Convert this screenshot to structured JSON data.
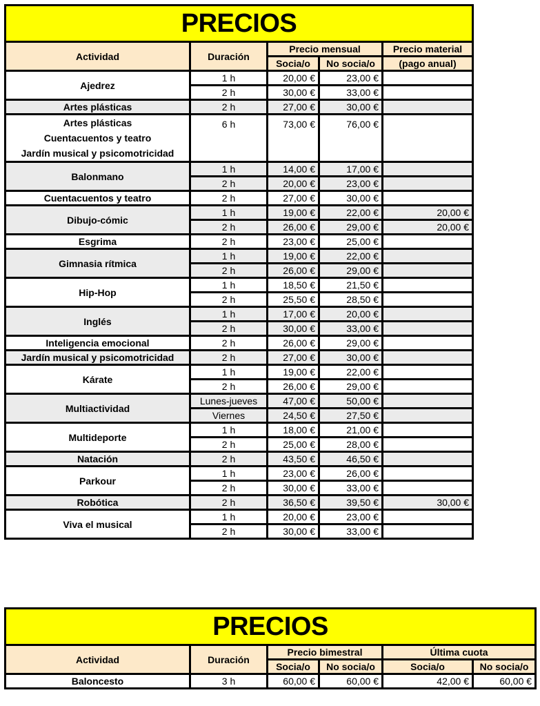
{
  "table1": {
    "title": "PRECIOS",
    "headers": {
      "actividad": "Actividad",
      "duracion": "Duración",
      "precio_mensual": "Precio mensual",
      "precio_material": "Precio material",
      "socia": "Socia/o",
      "no_socia": "No socia/o",
      "pago_anual": "(pago anual)"
    },
    "groups": [
      {
        "actividad": [
          "Ajedrez"
        ],
        "gray": false,
        "rows": [
          [
            "1 h",
            "20,00 €",
            "23,00 €",
            ""
          ],
          [
            "2 h",
            "30,00 €",
            "33,00 €",
            ""
          ]
        ]
      },
      {
        "actividad": [
          "Artes plásticas"
        ],
        "gray": true,
        "rows": [
          [
            "2 h",
            "27,00 €",
            "30,00 €",
            ""
          ]
        ]
      },
      {
        "actividad": [
          "Artes plásticas",
          "Cuentacuentos y teatro",
          "Jardín musical y psicomotricidad"
        ],
        "gray": false,
        "tall": true,
        "rows": [
          [
            "6 h",
            "73,00 €",
            "76,00 €",
            ""
          ]
        ]
      },
      {
        "actividad": [
          "Balonmano"
        ],
        "gray": true,
        "rows": [
          [
            "1 h",
            "14,00 €",
            "17,00 €",
            ""
          ],
          [
            "2 h",
            "20,00 €",
            "23,00 €",
            ""
          ]
        ]
      },
      {
        "actividad": [
          "Cuentacuentos y teatro"
        ],
        "gray": false,
        "rows": [
          [
            "2 h",
            "27,00 €",
            "30,00 €",
            ""
          ]
        ]
      },
      {
        "actividad": [
          "Dibujo-cómic"
        ],
        "gray": true,
        "rows": [
          [
            "1 h",
            "19,00 €",
            "22,00 €",
            "20,00 €"
          ],
          [
            "2 h",
            "26,00 €",
            "29,00 €",
            "20,00 €"
          ]
        ]
      },
      {
        "actividad": [
          "Esgrima"
        ],
        "gray": false,
        "rows": [
          [
            "2 h",
            "23,00 €",
            "25,00 €",
            ""
          ]
        ]
      },
      {
        "actividad": [
          "Gimnasia rítmica"
        ],
        "gray": true,
        "rows": [
          [
            "1 h",
            "19,00 €",
            "22,00 €",
            ""
          ],
          [
            "2 h",
            "26,00 €",
            "29,00 €",
            ""
          ]
        ]
      },
      {
        "actividad": [
          "Hip-Hop"
        ],
        "gray": false,
        "rows": [
          [
            "1 h",
            "18,50 €",
            "21,50 €",
            ""
          ],
          [
            "2 h",
            "25,50 €",
            "28,50 €",
            ""
          ]
        ]
      },
      {
        "actividad": [
          "Inglés"
        ],
        "gray": true,
        "rows": [
          [
            "1 h",
            "17,00 €",
            "20,00 €",
            ""
          ],
          [
            "2 h",
            "30,00 €",
            "33,00 €",
            ""
          ]
        ]
      },
      {
        "actividad": [
          "Inteligencia emocional"
        ],
        "gray": false,
        "rows": [
          [
            "2 h",
            "26,00 €",
            "29,00 €",
            ""
          ]
        ]
      },
      {
        "actividad": [
          "Jardín musical y psicomotricidad"
        ],
        "gray": true,
        "rows": [
          [
            "2 h",
            "27,00 €",
            "30,00 €",
            ""
          ]
        ]
      },
      {
        "actividad": [
          "Kárate"
        ],
        "gray": false,
        "rows": [
          [
            "1 h",
            "19,00 €",
            "22,00 €",
            ""
          ],
          [
            "2 h",
            "26,00 €",
            "29,00 €",
            ""
          ]
        ]
      },
      {
        "actividad": [
          "Multiactividad"
        ],
        "gray": true,
        "rows": [
          [
            "Lunes-jueves",
            "47,00 €",
            "50,00 €",
            ""
          ],
          [
            "Viernes",
            "24,50 €",
            "27,50 €",
            ""
          ]
        ]
      },
      {
        "actividad": [
          "Multideporte"
        ],
        "gray": false,
        "rows": [
          [
            "1 h",
            "18,00 €",
            "21,00 €",
            ""
          ],
          [
            "2 h",
            "25,00 €",
            "28,00 €",
            ""
          ]
        ]
      },
      {
        "actividad": [
          "Natación"
        ],
        "gray": true,
        "rows": [
          [
            "2 h",
            "43,50 €",
            "46,50 €",
            ""
          ]
        ]
      },
      {
        "actividad": [
          "Parkour"
        ],
        "gray": false,
        "rows": [
          [
            "1 h",
            "23,00 €",
            "26,00 €",
            ""
          ],
          [
            "2 h",
            "30,00 €",
            "33,00 €",
            ""
          ]
        ]
      },
      {
        "actividad": [
          "Robótica"
        ],
        "gray": true,
        "rows": [
          [
            "2 h",
            "36,50 €",
            "39,50 €",
            "30,00 €"
          ]
        ]
      },
      {
        "actividad": [
          "Viva el musical"
        ],
        "gray": false,
        "rows": [
          [
            "1 h",
            "20,00 €",
            "23,00 €",
            ""
          ],
          [
            "2 h",
            "30,00 €",
            "33,00 €",
            ""
          ]
        ]
      }
    ]
  },
  "table2": {
    "title": "PRECIOS",
    "headers": {
      "actividad": "Actividad",
      "duracion": "Duración",
      "precio_bimestral": "Precio bimestral",
      "ultima_cuota": "Última cuota",
      "socia": "Socia/o",
      "no_socia": "No socia/o"
    },
    "rows": [
      {
        "actividad": "Baloncesto",
        "duracion": "3 h",
        "bim_socia": "60,00 €",
        "bim_no_socia": "60,00 €",
        "ult_socia": "42,00 €",
        "ult_no_socia": "60,00 €"
      }
    ]
  },
  "colors": {
    "title_bg": "#ffff00",
    "header_bg": "#fde9c9",
    "alt_row_bg": "#ebebeb",
    "border": "#000000"
  }
}
